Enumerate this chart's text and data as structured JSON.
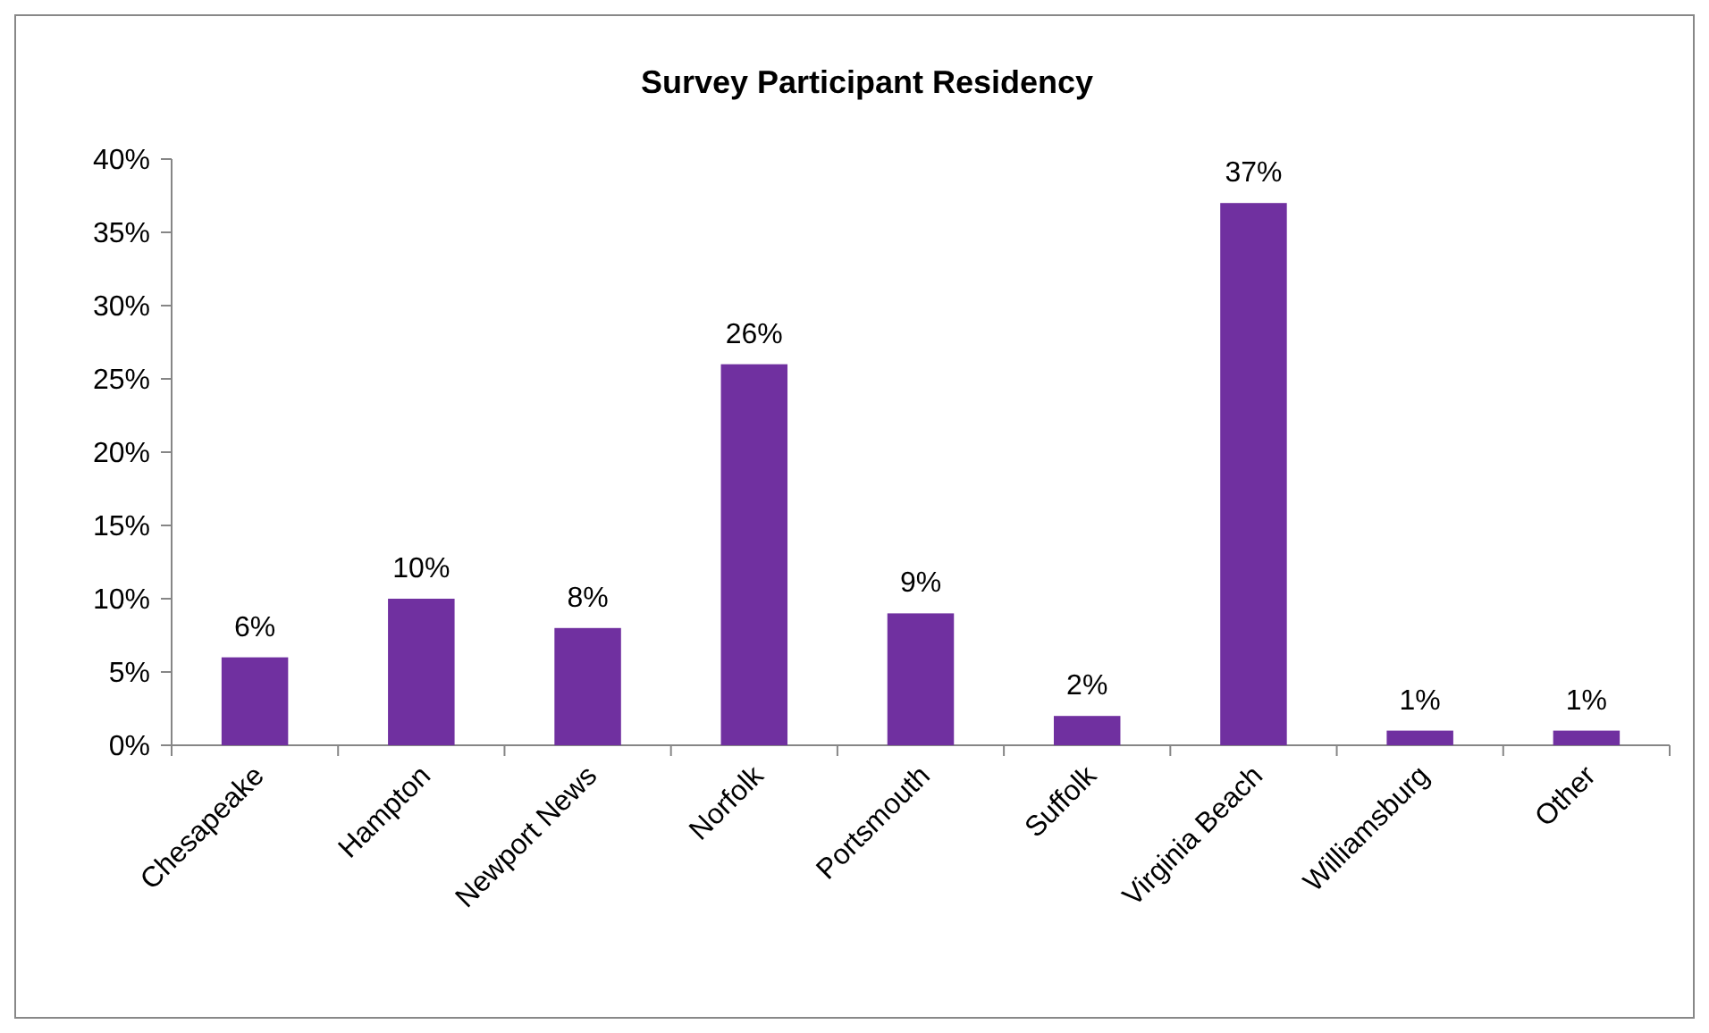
{
  "chart_data": {
    "type": "bar",
    "title": "Survey Participant Residency",
    "categories": [
      "Chesapeake",
      "Hampton",
      "Newport News",
      "Norfolk",
      "Portsmouth",
      "Suffolk",
      "Virginia Beach",
      "Williamsburg",
      "Other"
    ],
    "values": [
      6,
      10,
      8,
      26,
      9,
      2,
      37,
      1,
      1
    ],
    "value_labels": [
      "6%",
      "10%",
      "8%",
      "26%",
      "9%",
      "2%",
      "37%",
      "1%",
      "1%"
    ],
    "color": "#7030a0",
    "ylim": [
      0,
      40
    ],
    "yticks": [
      {
        "value": 0,
        "label": "0%"
      },
      {
        "value": 5,
        "label": "5%"
      },
      {
        "value": 10,
        "label": "10%"
      },
      {
        "value": 15,
        "label": "15%"
      },
      {
        "value": 20,
        "label": "20%"
      },
      {
        "value": 25,
        "label": "25%"
      },
      {
        "value": 30,
        "label": "30%"
      },
      {
        "value": 35,
        "label": "35%"
      },
      {
        "value": 40,
        "label": "40%"
      }
    ],
    "grid": false
  }
}
